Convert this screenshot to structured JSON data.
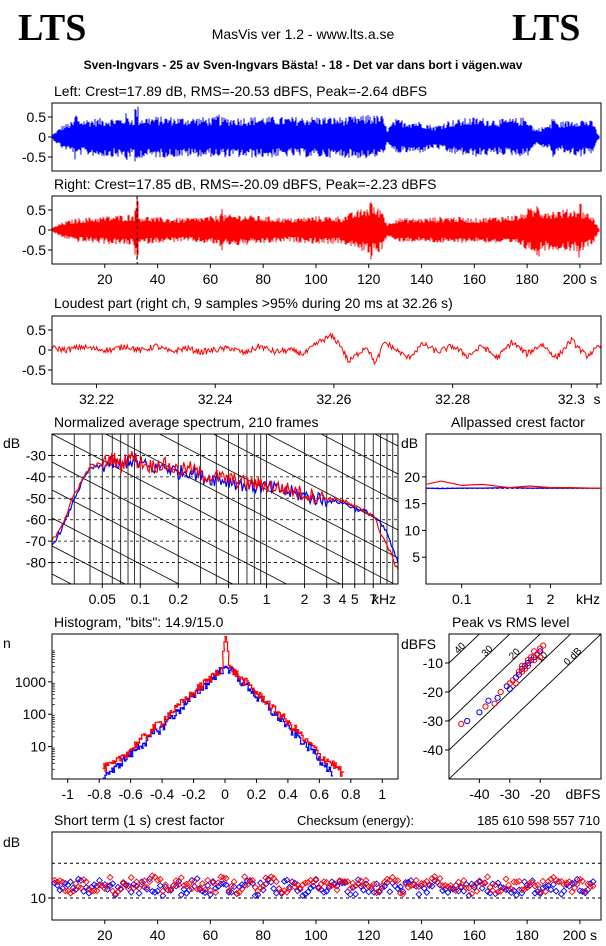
{
  "header": {
    "logo_left": "LTS",
    "logo_right": "LTS",
    "app_title": "MasVis ver 1.2 - www.lts.a.se",
    "file_title": "Sven-Ingvars - 25 av Sven-Ingvars Bästa! - 18 - Det var dans bort i vägen.wav",
    "checksum_label": "Checksum (energy):",
    "checksum_value": "185 610 598 557 710"
  },
  "colors": {
    "left": "#0000ff",
    "right": "#ff0000",
    "grid": "#000000"
  },
  "chart_data": [
    {
      "id": "left",
      "type": "line",
      "title": "Left: Crest=17.89 dB, RMS=-20.53 dBFS, Peak=-2.64 dBFS",
      "ylim": [
        -0.85,
        0.85
      ],
      "yticks": [
        0.5,
        0,
        -0.5
      ],
      "ytick_labels": [
        "0.5",
        "0",
        "-0.5"
      ],
      "xlim": [
        0,
        208
      ],
      "envelope": {
        "x": [
          0,
          4,
          10,
          20,
          30,
          40,
          50,
          60,
          70,
          80,
          90,
          100,
          110,
          120,
          125,
          127,
          130,
          140,
          145,
          150,
          160,
          170,
          180,
          183,
          190,
          200,
          205,
          207
        ],
        "upper": [
          0.05,
          0.3,
          0.45,
          0.48,
          0.5,
          0.52,
          0.5,
          0.5,
          0.5,
          0.52,
          0.5,
          0.52,
          0.5,
          0.55,
          0.55,
          0.2,
          0.45,
          0.4,
          0.28,
          0.42,
          0.5,
          0.45,
          0.5,
          0.2,
          0.35,
          0.48,
          0.4,
          0.05
        ],
        "lower": [
          -0.05,
          -0.3,
          -0.45,
          -0.5,
          -0.52,
          -0.52,
          -0.5,
          -0.5,
          -0.52,
          -0.52,
          -0.5,
          -0.52,
          -0.52,
          -0.55,
          -0.5,
          -0.2,
          -0.42,
          -0.4,
          -0.28,
          -0.42,
          -0.5,
          -0.45,
          -0.5,
          -0.2,
          -0.35,
          -0.5,
          -0.4,
          -0.05
        ],
        "spikes": [
          {
            "x": 9,
            "upper": 0.62,
            "lower": -0.6
          },
          {
            "x": 28,
            "upper": 0.6,
            "lower": -0.62
          },
          {
            "x": 32,
            "upper": 0.78,
            "lower": -0.7
          },
          {
            "x": 63,
            "upper": 0.58,
            "lower": -0.6
          },
          {
            "x": 120,
            "upper": 0.62,
            "lower": -0.58
          },
          {
            "x": 190,
            "upper": 0.55,
            "lower": -0.55
          }
        ]
      }
    },
    {
      "id": "right",
      "type": "line",
      "title": "Right: Crest=17.85 dB, RMS=-20.09 dBFS, Peak=-2.23 dBFS",
      "ylim": [
        -0.85,
        0.85
      ],
      "yticks": [
        0.5,
        0,
        -0.5
      ],
      "ytick_labels": [
        "0.5",
        "0",
        "-0.5"
      ],
      "xlim": [
        0,
        208
      ],
      "xticks": [
        20,
        40,
        60,
        80,
        100,
        120,
        140,
        160,
        180,
        200
      ],
      "xtick_labels": [
        "20",
        "40",
        "60",
        "80",
        "100",
        "120",
        "140",
        "160",
        "180",
        "200 s"
      ],
      "marker_x": 32.26,
      "envelope": {
        "x": [
          0,
          4,
          10,
          20,
          30,
          40,
          50,
          60,
          70,
          80,
          90,
          100,
          110,
          120,
          125,
          127,
          130,
          140,
          150,
          160,
          170,
          178,
          180,
          190,
          200,
          205,
          207
        ],
        "upper": [
          0.05,
          0.2,
          0.3,
          0.35,
          0.4,
          0.32,
          0.3,
          0.35,
          0.4,
          0.35,
          0.3,
          0.35,
          0.35,
          0.6,
          0.55,
          0.15,
          0.3,
          0.3,
          0.35,
          0.3,
          0.35,
          0.4,
          0.55,
          0.5,
          0.55,
          0.35,
          0.05
        ],
        "lower": [
          -0.05,
          -0.2,
          -0.3,
          -0.35,
          -0.4,
          -0.32,
          -0.3,
          -0.35,
          -0.4,
          -0.35,
          -0.3,
          -0.35,
          -0.35,
          -0.6,
          -0.55,
          -0.15,
          -0.3,
          -0.3,
          -0.35,
          -0.3,
          -0.35,
          -0.4,
          -0.55,
          -0.5,
          -0.55,
          -0.35,
          -0.05
        ],
        "spikes": [
          {
            "x": 32,
            "upper": 0.85,
            "lower": -0.8
          },
          {
            "x": 64,
            "upper": 0.6,
            "lower": -0.55
          },
          {
            "x": 121,
            "upper": 0.8,
            "lower": -0.75
          },
          {
            "x": 184,
            "upper": 0.8,
            "lower": -0.78
          },
          {
            "x": 200,
            "upper": 0.7,
            "lower": -0.7
          }
        ]
      }
    },
    {
      "id": "loudest",
      "type": "line",
      "title": "Loudest part (right ch, 9 samples >95% during 20 ms at 32.26 s)",
      "xlim": [
        32.2125,
        32.305
      ],
      "ylim": [
        -0.85,
        0.85
      ],
      "yticks": [
        0.5,
        0,
        -0.5
      ],
      "ytick_labels": [
        "0.5",
        "0",
        "-0.5"
      ],
      "xticks": [
        32.22,
        32.24,
        32.26,
        32.28,
        32.3,
        32.305
      ],
      "xtick_labels": [
        "32.22",
        "32.24",
        "32.26",
        "32.28",
        "32.3",
        "s"
      ],
      "x": [
        32.2125,
        32.215,
        32.2175,
        32.22,
        32.2225,
        32.225,
        32.2275,
        32.23,
        32.2325,
        32.235,
        32.2375,
        32.24,
        32.2425,
        32.245,
        32.2475,
        32.25,
        32.2525,
        32.255,
        32.2575,
        32.2595,
        32.261,
        32.2625,
        32.264,
        32.2655,
        32.267,
        32.2685,
        32.27,
        32.2725,
        32.275,
        32.2775,
        32.28,
        32.2825,
        32.285,
        32.2875,
        32.29,
        32.2925,
        32.295,
        32.2975,
        32.3,
        32.3025,
        32.305
      ],
      "y": [
        0.05,
        0.0,
        0.08,
        0.02,
        0.0,
        0.1,
        -0.02,
        0.1,
        -0.05,
        0.05,
        -0.05,
        0.0,
        0.05,
        -0.08,
        0.1,
        -0.05,
        0.0,
        -0.1,
        0.2,
        0.35,
        0.15,
        -0.3,
        -0.1,
        0.1,
        -0.35,
        0.2,
        0.05,
        -0.2,
        0.15,
        -0.05,
        0.1,
        -0.15,
        0.1,
        -0.2,
        0.2,
        -0.1,
        0.15,
        -0.2,
        0.25,
        -0.15,
        0.1
      ],
      "noise": 0.15
    },
    {
      "id": "spectrum",
      "type": "line",
      "title": "Normalized average spectrum, 210 frames",
      "ylabel": "dB",
      "xlabel": "kHz",
      "xscale": "log",
      "xlim": [
        0.02,
        11
      ],
      "ylim": [
        -90,
        -20
      ],
      "yticks": [
        -30,
        -40,
        -50,
        -60,
        -70,
        -80
      ],
      "ytick_labels": [
        "-30",
        "-40",
        "-50",
        "-60",
        "-70",
        "-80"
      ],
      "xticks": [
        0.05,
        0.1,
        0.2,
        0.5,
        1,
        2,
        3,
        4,
        5,
        7
      ],
      "xtick_labels": [
        "0.05",
        "0.1",
        "0.2",
        "0.5",
        "1",
        "2",
        "3",
        "4",
        "5",
        "7"
      ],
      "series": [
        {
          "channel": "left",
          "x": [
            0.02,
            0.025,
            0.03,
            0.035,
            0.04,
            0.05,
            0.06,
            0.07,
            0.08,
            0.1,
            0.12,
            0.15,
            0.2,
            0.25,
            0.3,
            0.4,
            0.5,
            0.7,
            1,
            1.5,
            2,
            3,
            4,
            5,
            6,
            7,
            8,
            9,
            10,
            11
          ],
          "y": [
            -72,
            -62,
            -50,
            -42,
            -36,
            -35,
            -33,
            -36,
            -32,
            -34,
            -36,
            -35,
            -38,
            -37,
            -40,
            -41,
            -42,
            -44,
            -45,
            -47,
            -49,
            -51,
            -52,
            -55,
            -56,
            -58,
            -62,
            -66,
            -74,
            -80
          ]
        },
        {
          "channel": "right",
          "x": [
            0.02,
            0.025,
            0.03,
            0.035,
            0.04,
            0.05,
            0.06,
            0.07,
            0.08,
            0.1,
            0.12,
            0.15,
            0.2,
            0.25,
            0.3,
            0.4,
            0.5,
            0.7,
            1,
            1.5,
            2,
            3,
            4,
            5,
            6,
            7,
            8,
            9,
            10,
            11
          ],
          "y": [
            -70,
            -60,
            -48,
            -41,
            -35,
            -34,
            -31,
            -35,
            -30,
            -33,
            -35,
            -34,
            -37,
            -36,
            -39,
            -40,
            -41,
            -43,
            -44,
            -46,
            -48,
            -50,
            -51,
            -54,
            -56,
            -58,
            -66,
            -72,
            -78,
            -84
          ]
        }
      ]
    },
    {
      "id": "allpass",
      "type": "line",
      "title": "Allpassed crest factor",
      "ylabel": "dB",
      "xlabel": "kHz",
      "xscale": "log",
      "xlim": [
        0.03,
        11
      ],
      "ylim": [
        0,
        28
      ],
      "yticks": [
        20,
        15,
        10,
        5
      ],
      "ytick_labels": [
        "20",
        "15",
        "10",
        "5"
      ],
      "xticks": [
        0.1,
        1,
        2
      ],
      "xtick_labels": [
        "0.1",
        "1",
        "2"
      ],
      "reference": {
        "left": 17.89,
        "right": 17.85
      },
      "series": [
        {
          "channel": "left",
          "x": [
            0.03,
            0.05,
            0.1,
            0.2,
            0.5,
            1,
            2,
            4,
            8,
            11
          ],
          "y": [
            17.9,
            17.8,
            17.9,
            17.9,
            18.0,
            17.9,
            17.9,
            17.9,
            17.9,
            17.9
          ]
        },
        {
          "channel": "right",
          "x": [
            0.03,
            0.05,
            0.1,
            0.2,
            0.5,
            1,
            2,
            4,
            8,
            11
          ],
          "y": [
            18.6,
            19.2,
            18.4,
            18.6,
            18.0,
            18.3,
            18.0,
            18.0,
            17.9,
            17.9
          ]
        }
      ]
    },
    {
      "id": "histogram",
      "type": "bar",
      "title": "Histogram, \"bits\": 14.9/15.0",
      "ylabel": "n",
      "yscale": "log",
      "xlim": [
        -1.1,
        1.1
      ],
      "ylim": [
        1,
        30000
      ],
      "yticks": [
        1000,
        100,
        10
      ],
      "ytick_labels": [
        "1000",
        "100",
        "10"
      ],
      "xticks": [
        -1,
        -0.8,
        -0.6,
        -0.4,
        -0.2,
        0,
        0.2,
        0.4,
        0.6,
        0.8,
        1
      ],
      "xtick_labels": [
        "-1",
        "-0.8",
        "-0.6",
        "-0.4",
        "-0.2",
        "0",
        "0.2",
        "0.4",
        "0.6",
        "0.8",
        "1"
      ],
      "series": [
        {
          "channel": "left",
          "x": [
            -0.78,
            -0.7,
            -0.6,
            -0.5,
            -0.4,
            -0.3,
            -0.2,
            -0.1,
            -0.02,
            0,
            0.02,
            0.1,
            0.2,
            0.3,
            0.4,
            0.5,
            0.6,
            0.68
          ],
          "y": [
            1.3,
            2,
            6,
            15,
            40,
            120,
            350,
            1000,
            2500,
            3000,
            2500,
            1000,
            320,
            110,
            35,
            12,
            4,
            1.3
          ]
        },
        {
          "channel": "right",
          "x": [
            -0.78,
            -0.7,
            -0.6,
            -0.5,
            -0.4,
            -0.3,
            -0.2,
            -0.1,
            -0.02,
            0,
            0.02,
            0.1,
            0.2,
            0.3,
            0.4,
            0.5,
            0.6,
            0.75
          ],
          "y": [
            2.2,
            3,
            8,
            22,
            60,
            170,
            450,
            1200,
            2800,
            25000,
            2800,
            1200,
            420,
            150,
            50,
            16,
            5,
            1.3
          ]
        }
      ]
    },
    {
      "id": "peakrms",
      "type": "scatter",
      "title": "Peak vs RMS level",
      "ylabel": "dBFS",
      "xlabel": "dBFS",
      "xlim": [
        -50,
        0
      ],
      "ylim": [
        -50,
        0
      ],
      "yticks": [
        -10,
        -20,
        -30,
        -40
      ],
      "ytick_labels": [
        "-10",
        "-20",
        "-30",
        "-40"
      ],
      "xticks": [
        -40,
        -30,
        -20
      ],
      "xtick_labels": [
        "-40",
        "-30",
        "-20"
      ],
      "diagonal_labels": [
        "40",
        "30",
        "20",
        "10",
        "0 dB"
      ],
      "series": [
        {
          "channel": "left",
          "points": [
            [
              -44,
              -30
            ],
            [
              -40,
              -27
            ],
            [
              -37,
              -23
            ],
            [
              -34,
              -22
            ],
            [
              -31,
              -18
            ],
            [
              -30,
              -19
            ],
            [
              -28,
              -15
            ],
            [
              -27,
              -14
            ],
            [
              -26,
              -12
            ],
            [
              -25,
              -11
            ],
            [
              -24,
              -10
            ],
            [
              -23,
              -9
            ],
            [
              -22,
              -8
            ],
            [
              -21,
              -7
            ],
            [
              -20,
              -6
            ]
          ]
        },
        {
          "channel": "right",
          "points": [
            [
              -46,
              -31
            ],
            [
              -38,
              -25
            ],
            [
              -35,
              -24
            ],
            [
              -33,
              -20
            ],
            [
              -30,
              -17
            ],
            [
              -29,
              -16
            ],
            [
              -28,
              -17
            ],
            [
              -27,
              -13
            ],
            [
              -26,
              -11
            ],
            [
              -25,
              -12
            ],
            [
              -24,
              -9
            ],
            [
              -23,
              -8
            ],
            [
              -22,
              -9
            ],
            [
              -21,
              -7
            ],
            [
              -20,
              -5
            ],
            [
              -19,
              -4
            ],
            [
              -20,
              -8
            ],
            [
              -22,
              -6
            ],
            [
              -24,
              -11
            ],
            [
              -26,
              -13
            ]
          ]
        }
      ]
    },
    {
      "id": "shortcrest",
      "type": "scatter",
      "title": "Short term (1 s) crest factor",
      "ylabel": "dB",
      "xlim": [
        0,
        208
      ],
      "ylim": [
        5,
        25
      ],
      "yticks": [
        10
      ],
      "ytick_labels": [
        "10"
      ],
      "hlines": [
        10,
        17.9
      ],
      "xticks": [
        20,
        40,
        60,
        80,
        100,
        120,
        140,
        160,
        180,
        200
      ],
      "xtick_labels": [
        "20",
        "40",
        "60",
        "80",
        "100",
        "120",
        "140",
        "160",
        "180",
        "200 s"
      ],
      "base": {
        "left": 12.5,
        "right": 13.0
      },
      "spread": 1.5,
      "count": 205
    }
  ]
}
